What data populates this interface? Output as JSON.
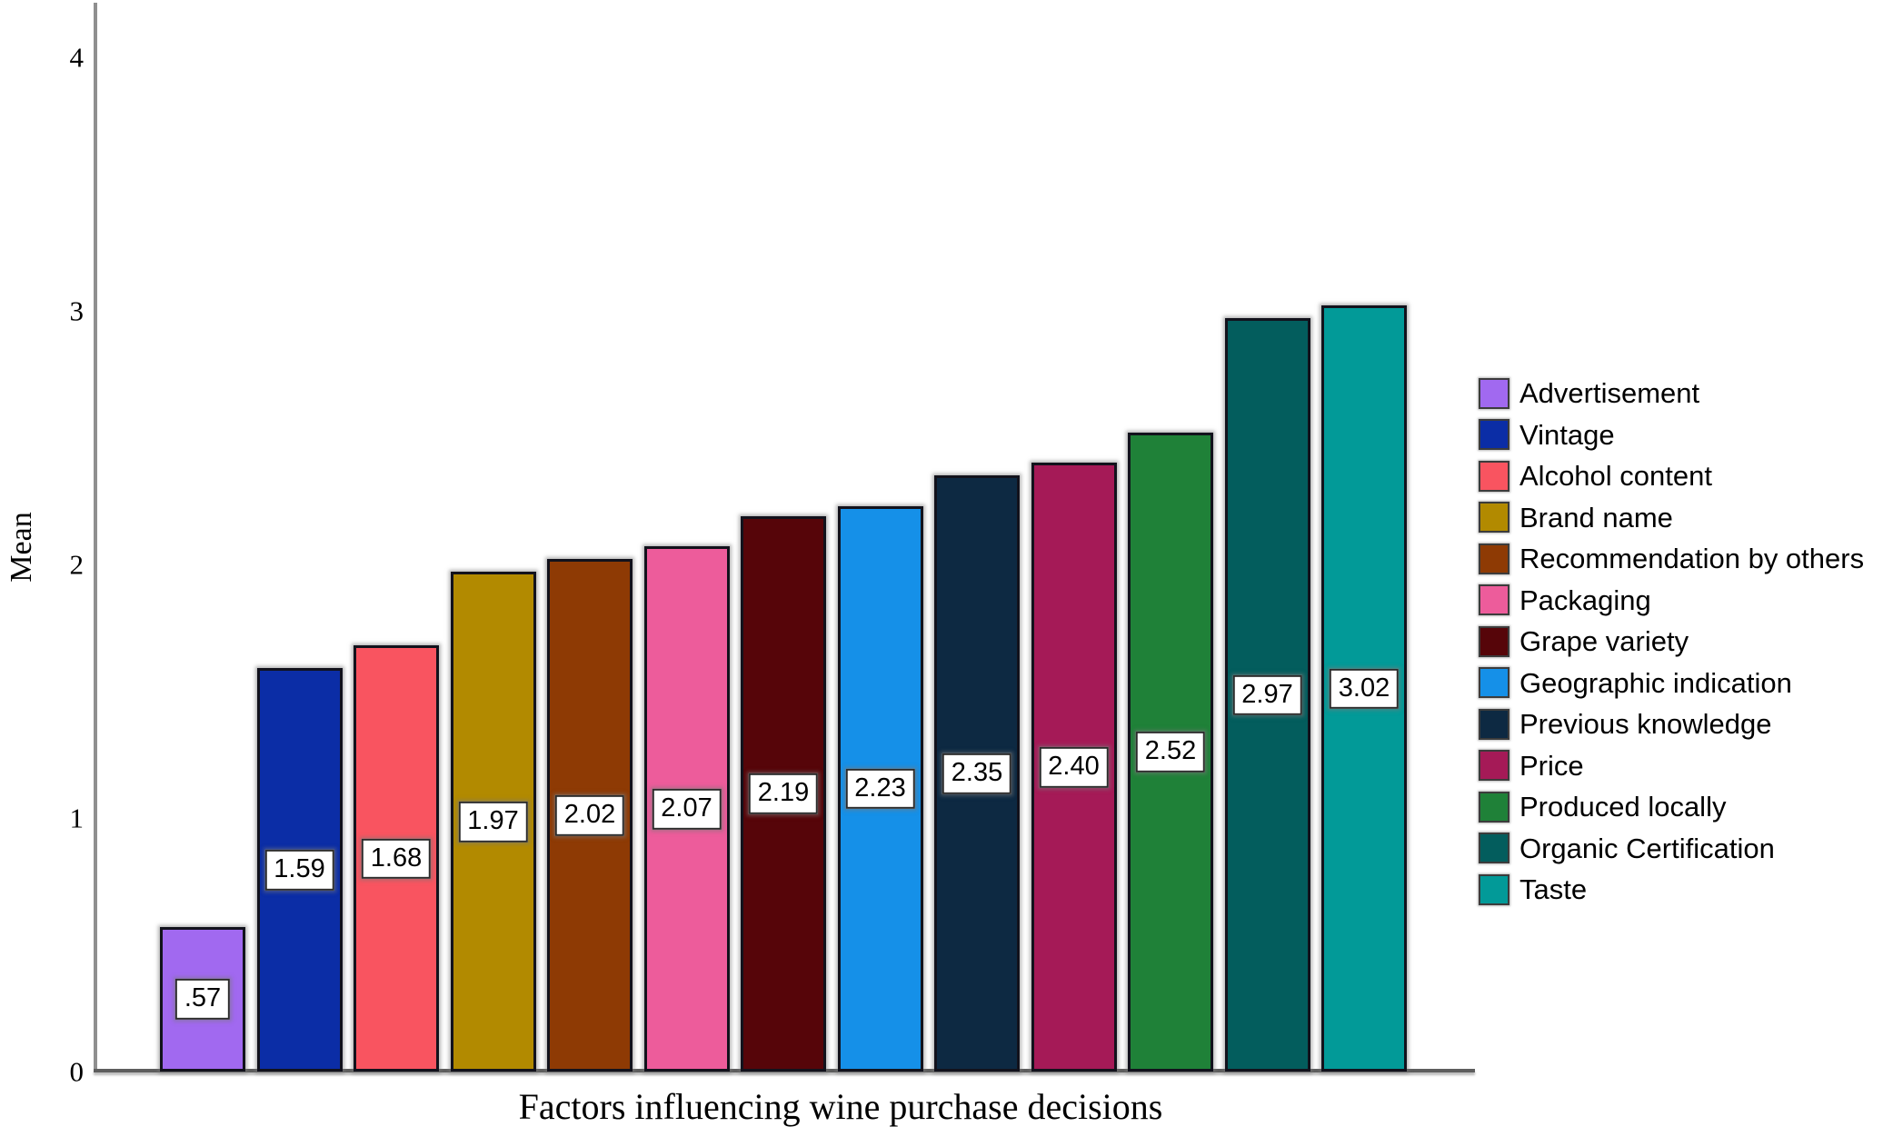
{
  "chart_data": {
    "type": "bar",
    "title": "",
    "xlabel": "Factors influencing wine purchase decisions",
    "ylabel": "Mean",
    "ylim": [
      0,
      4.2
    ],
    "yticks": [
      "0",
      "1",
      "2",
      "3",
      "4"
    ],
    "grid": false,
    "legend_position": "right",
    "categories": [
      "Advertisement",
      "Vintage",
      "Alcohol content",
      "Brand name",
      "Recommendation by others",
      "Packaging",
      "Grape variety",
      "Geographic indication",
      "Previous knowledge",
      "Price",
      "Produced locally",
      "Organic Certification",
      "Taste"
    ],
    "values": [
      0.57,
      1.59,
      1.68,
      1.97,
      2.02,
      2.07,
      2.19,
      2.23,
      2.35,
      2.4,
      2.52,
      2.97,
      3.02
    ],
    "value_labels": [
      ".57",
      "1.59",
      "1.68",
      "1.97",
      "2.02",
      "2.07",
      "2.19",
      "2.23",
      "2.35",
      "2.40",
      "2.52",
      "2.97",
      "3.02"
    ],
    "colors": [
      "#a169f0",
      "#0b2da6",
      "#f95460",
      "#b28a00",
      "#8e3a04",
      "#ed5c9b",
      "#560509",
      "#1590e8",
      "#0d2942",
      "#a51a57",
      "#1f8138",
      "#035d5d",
      "#029a98"
    ]
  }
}
